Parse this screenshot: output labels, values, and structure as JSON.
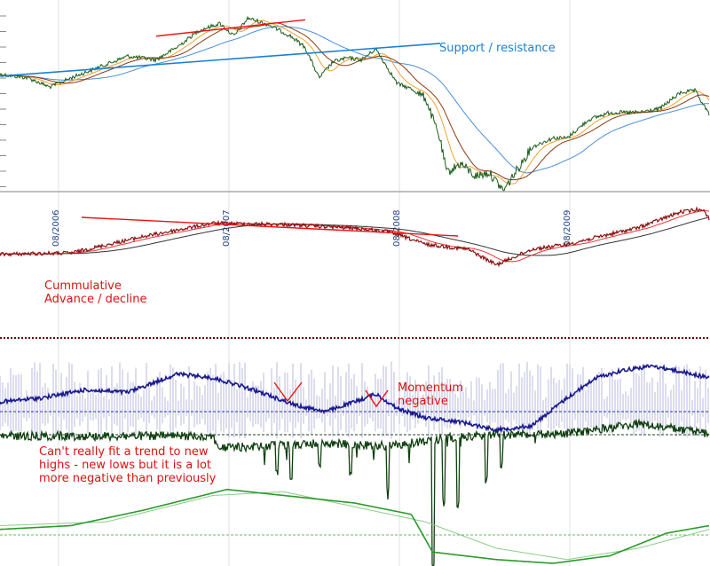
{
  "chart_data": [
    {
      "type": "line",
      "panel": "price",
      "series_styles": {
        "price": "#1a5c1a",
        "ma_fast": "#f0a030",
        "ma_mid": "#8b3a10",
        "ma_slow": "#4a8fd6"
      },
      "price_shape": [
        [
          0,
          0.36
        ],
        [
          0.04,
          0.38
        ],
        [
          0.07,
          0.43
        ],
        [
          0.1,
          0.38
        ],
        [
          0.14,
          0.32
        ],
        [
          0.18,
          0.26
        ],
        [
          0.22,
          0.28
        ],
        [
          0.25,
          0.21
        ],
        [
          0.28,
          0.12
        ],
        [
          0.31,
          0.08
        ],
        [
          0.33,
          0.15
        ],
        [
          0.35,
          0.05
        ],
        [
          0.38,
          0.09
        ],
        [
          0.41,
          0.15
        ],
        [
          0.43,
          0.21
        ],
        [
          0.45,
          0.38
        ],
        [
          0.47,
          0.29
        ],
        [
          0.49,
          0.27
        ],
        [
          0.51,
          0.28
        ],
        [
          0.53,
          0.22
        ],
        [
          0.56,
          0.41
        ],
        [
          0.58,
          0.44
        ],
        [
          0.6,
          0.49
        ],
        [
          0.62,
          0.71
        ],
        [
          0.63,
          0.9
        ],
        [
          0.65,
          0.85
        ],
        [
          0.67,
          0.92
        ],
        [
          0.69,
          0.9
        ],
        [
          0.71,
          1.0
        ],
        [
          0.73,
          0.88
        ],
        [
          0.75,
          0.76
        ],
        [
          0.78,
          0.71
        ],
        [
          0.8,
          0.71
        ],
        [
          0.83,
          0.61
        ],
        [
          0.86,
          0.57
        ],
        [
          0.9,
          0.57
        ],
        [
          0.93,
          0.55
        ],
        [
          0.96,
          0.46
        ],
        [
          0.98,
          0.45
        ],
        [
          1.0,
          0.58
        ]
      ],
      "lines": [
        {
          "label": "",
          "color": "#ee1111",
          "from": [
            0.22,
            0.15
          ],
          "to": [
            0.43,
            0.06
          ]
        },
        {
          "label": "Support / resistance",
          "color": "#1a7fd6",
          "from": [
            0.0,
            0.37
          ],
          "to": [
            0.62,
            0.19
          ]
        }
      ],
      "annotations": [
        "Support / resistance"
      ]
    },
    {
      "type": "line",
      "panel": "cumulative_advance_decline",
      "x_tick_labels": [
        "08/2006",
        "08/2007",
        "08/2008",
        "08/2009"
      ],
      "series_styles": {
        "ad": "#8b1010",
        "ma_fast": "#ee3333",
        "ma_slow": "#333333"
      },
      "annotations": [
        "Cummulative",
        "Advance / decline"
      ]
    },
    {
      "type": "line",
      "panel": "momentum",
      "series_styles": {
        "momentum": "#1a1a8f",
        "bars": "#b8b8e0",
        "green": "#104010"
      },
      "annotations": [
        "Momentum",
        "negative",
        "Can't really fit a trend to new",
        "highs - new lows but it is a lot",
        "more negative than previously"
      ]
    },
    {
      "type": "line",
      "panel": "bottom",
      "series_styles": {
        "fast": "#2a9a2a",
        "slow": "#88cc88"
      }
    }
  ],
  "annotation_text": {
    "support": "Support / resistance",
    "cad1": "Cummulative",
    "cad2": "Advance / decline",
    "mom1": "Momentum",
    "mom2": "negative",
    "trend1": "Can't really fit a trend to new",
    "trend2": "highs - new lows but it is a lot",
    "trend3": "more negative than previously"
  },
  "ticks": [
    "08/2006",
    "08/2007",
    "08/2008",
    "08/2009"
  ]
}
